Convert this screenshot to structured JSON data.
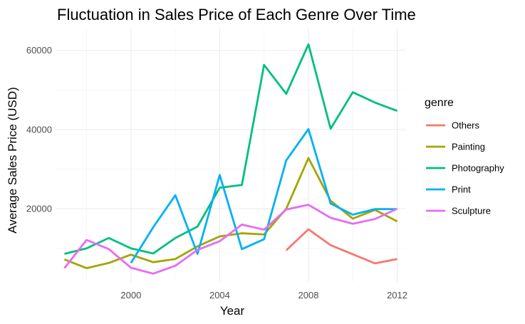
{
  "chart_data": {
    "type": "line",
    "title": "Fluctuation in Sales Price of Each Genre Over Time",
    "xlabel": "Year",
    "ylabel": "Average Sales Price (USD)",
    "xlim": [
      1996.6,
      2012.4
    ],
    "ylim": [
      1500,
      65500
    ],
    "x_ticks": [
      2000,
      2004,
      2008,
      2012
    ],
    "x_minor_ticks": [
      1998,
      2002,
      2006,
      2010
    ],
    "y_ticks": [
      20000,
      40000,
      60000
    ],
    "y_minor_ticks": [
      10000,
      30000,
      50000
    ],
    "grid": true,
    "legend": {
      "title": "genre",
      "placement": "right"
    },
    "series": [
      {
        "name": "Others",
        "color": "#F8766D",
        "points": [
          [
            2007,
            9500
          ],
          [
            2008,
            14800
          ],
          [
            2009,
            10800
          ],
          [
            2010,
            8500
          ],
          [
            2011,
            6200
          ],
          [
            2012,
            7300
          ]
        ]
      },
      {
        "name": "Painting",
        "color": "#A3A500",
        "points": [
          [
            1997,
            7200
          ],
          [
            1998,
            5000
          ],
          [
            1999,
            6300
          ],
          [
            2000,
            8400
          ],
          [
            2001,
            6500
          ],
          [
            2002,
            7300
          ],
          [
            2003,
            10500
          ],
          [
            2004,
            13000
          ],
          [
            2005,
            13800
          ],
          [
            2006,
            13500
          ],
          [
            2007,
            20000
          ],
          [
            2008,
            32800
          ],
          [
            2009,
            22000
          ],
          [
            2010,
            17500
          ],
          [
            2011,
            19700
          ],
          [
            2012,
            16800
          ]
        ]
      },
      {
        "name": "Photography",
        "color": "#00BF7D",
        "points": [
          [
            1997,
            8600
          ],
          [
            1998,
            10000
          ],
          [
            1999,
            12600
          ],
          [
            2000,
            10000
          ],
          [
            2001,
            8700
          ],
          [
            2002,
            12600
          ],
          [
            2003,
            15500
          ],
          [
            2004,
            25300
          ],
          [
            2005,
            26000
          ],
          [
            2006,
            56300
          ],
          [
            2007,
            49000
          ],
          [
            2008,
            61500
          ],
          [
            2009,
            40200
          ],
          [
            2010,
            49400
          ],
          [
            2011,
            46800
          ],
          [
            2012,
            44700
          ]
        ]
      },
      {
        "name": "Print",
        "color": "#00B0F6",
        "points": [
          [
            2000,
            6300
          ],
          [
            2001,
            15300
          ],
          [
            2002,
            23400
          ],
          [
            2003,
            8600
          ],
          [
            2004,
            28500
          ],
          [
            2005,
            9800
          ],
          [
            2006,
            12300
          ],
          [
            2007,
            32200
          ],
          [
            2008,
            40100
          ],
          [
            2009,
            21300
          ],
          [
            2010,
            18500
          ],
          [
            2011,
            19900
          ],
          [
            2012,
            19900
          ]
        ]
      },
      {
        "name": "Sculpture",
        "color": "#E76BF3",
        "points": [
          [
            1997,
            5000
          ],
          [
            1998,
            12100
          ],
          [
            1999,
            9800
          ],
          [
            2000,
            5100
          ],
          [
            2001,
            3600
          ],
          [
            2002,
            5600
          ],
          [
            2003,
            9600
          ],
          [
            2004,
            11800
          ],
          [
            2005,
            16000
          ],
          [
            2006,
            14700
          ],
          [
            2007,
            19800
          ],
          [
            2008,
            21000
          ],
          [
            2009,
            17700
          ],
          [
            2010,
            16200
          ],
          [
            2011,
            17400
          ],
          [
            2012,
            20000
          ]
        ]
      }
    ]
  }
}
